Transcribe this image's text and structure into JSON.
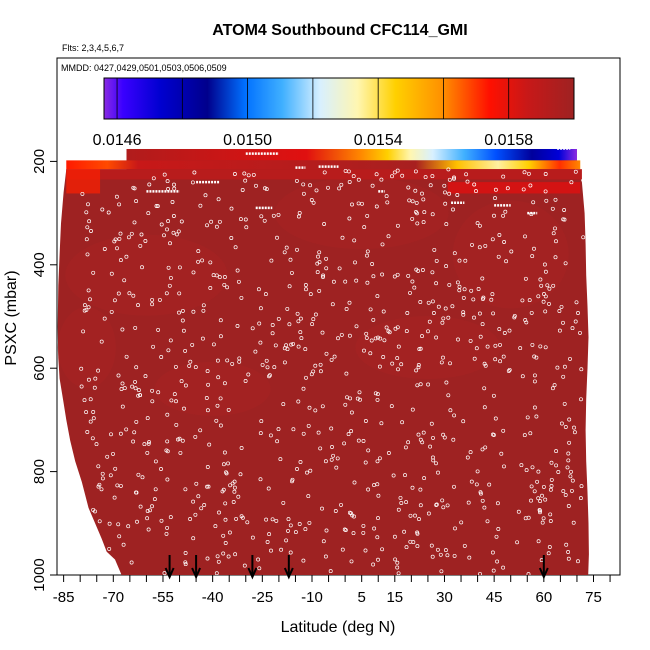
{
  "chart_data": {
    "type": "heatmap",
    "title": "ATOM4 Southbound CFC114_GMI",
    "flights_note": "Flts: 2,3,4,5,6,7",
    "dates_note": "MMDD: 0427,0429,0501,0503,0506,0509",
    "xlabel": "Latitude (deg N)",
    "ylabel": "PSXC (mbar)",
    "x_ticks": [
      -85,
      -70,
      -55,
      -40,
      -25,
      -10,
      5,
      15,
      30,
      45,
      60,
      75
    ],
    "y_ticks": [
      200,
      400,
      600,
      800,
      1000
    ],
    "xlim": [
      -87,
      83
    ],
    "ylim": [
      1000,
      0
    ],
    "colorbar": {
      "ticks": [
        "0.0146",
        "0.0150",
        "0.0154",
        "0.0158"
      ],
      "tick_values": [
        0.0146,
        0.015,
        0.0154,
        0.0158
      ],
      "range": [
        0.01456,
        0.016
      ],
      "stops": [
        "#7f00ff",
        "#0000ff",
        "#00008c",
        "#0050ff",
        "#1e90ff",
        "#e6f5ff",
        "#fff4a0",
        "#ffd700",
        "#ffa500",
        "#ff0000",
        "#b22222",
        "#9b2020"
      ]
    },
    "background_value": 0.01595,
    "arrows_latitude": [
      -53,
      -45,
      -28,
      -17,
      60
    ],
    "layers": [
      {
        "p_top": 176,
        "p_bot": 198,
        "lat_from": -66,
        "lat_to": 70,
        "gradient": "upper-band"
      },
      {
        "p_top": 198,
        "p_bot": 215,
        "lat_from": -66,
        "lat_to": 70,
        "gradient": "lower-band"
      }
    ],
    "colors": {
      "field": "#9e2222",
      "marker": "#ffffff",
      "arrow": "#000000"
    }
  }
}
